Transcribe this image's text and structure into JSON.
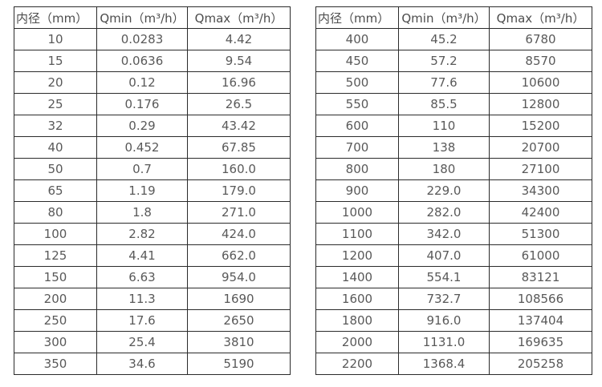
{
  "page": {
    "background_color": "#ffffff",
    "border_color": "#2b2b2b",
    "text_color": "#595959"
  },
  "tables": [
    {
      "name": "flow-rate-table-left",
      "headers": [
        "内径（mm）",
        "Qmin（m³/h）",
        "Qmax（m³/h）"
      ],
      "rows": [
        [
          "10",
          "0.0283",
          "4.42"
        ],
        [
          "15",
          "0.0636",
          "9.54"
        ],
        [
          "20",
          "0.12",
          "16.96"
        ],
        [
          "25",
          "0.176",
          "26.5"
        ],
        [
          "32",
          "0.29",
          "43.42"
        ],
        [
          "40",
          "0.452",
          "67.85"
        ],
        [
          "50",
          "0.7",
          "160.0"
        ],
        [
          "65",
          "1.19",
          "179.0"
        ],
        [
          "80",
          "1.8",
          "271.0"
        ],
        [
          "100",
          "2.82",
          "424.0"
        ],
        [
          "125",
          "4.41",
          "662.0"
        ],
        [
          "150",
          "6.63",
          "954.0"
        ],
        [
          "200",
          "11.3",
          "1690"
        ],
        [
          "250",
          "17.6",
          "2650"
        ],
        [
          "300",
          "25.4",
          "3810"
        ],
        [
          "350",
          "34.6",
          "5190"
        ]
      ]
    },
    {
      "name": "flow-rate-table-right",
      "headers": [
        "内径（mm）",
        "Qmin（m³/h）",
        "Qmax（m³/h）"
      ],
      "rows": [
        [
          "400",
          "45.2",
          "6780"
        ],
        [
          "450",
          "57.2",
          "8570"
        ],
        [
          "500",
          "77.6",
          "10600"
        ],
        [
          "550",
          "85.5",
          "12800"
        ],
        [
          "600",
          "110",
          "15200"
        ],
        [
          "700",
          "138",
          "20700"
        ],
        [
          "800",
          "180",
          "27100"
        ],
        [
          "900",
          "229.0",
          "34300"
        ],
        [
          "1000",
          "282.0",
          "42400"
        ],
        [
          "1100",
          "342.0",
          "51300"
        ],
        [
          "1200",
          "407.0",
          "61000"
        ],
        [
          "1400",
          "554.1",
          "83121"
        ],
        [
          "1600",
          "732.7",
          "108566"
        ],
        [
          "1800",
          "916.0",
          "137404"
        ],
        [
          "2000",
          "1131.0",
          "169635"
        ],
        [
          "2200",
          "1368.4",
          "205258"
        ]
      ]
    }
  ]
}
